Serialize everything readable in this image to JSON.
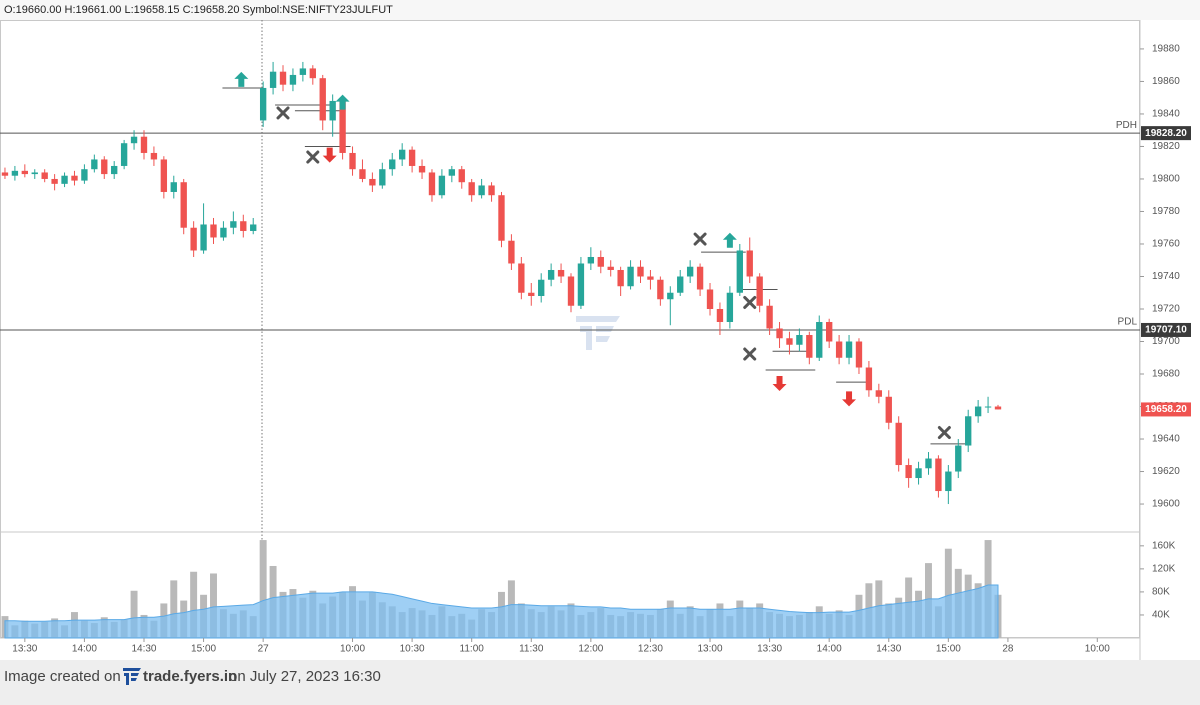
{
  "chart_data": {
    "type": "candlestick",
    "header": "O:19660.00 H:19661.00 L:19658.15 C:19658.20 Symbol:NSE:NIFTY23JULFUT",
    "footer": {
      "prefix": "Image created on",
      "site": "trade.fyers.in",
      "suffix": "on July 27, 2023 16:30"
    },
    "up_color": "#26a69a",
    "down_color": "#ef5350",
    "volume_color": "#b9b9b9",
    "volume_ma_color": "#7fbff0",
    "xlim": [
      -0.5,
      114.3
    ],
    "xticks": [
      {
        "value": 2,
        "label": "13:30"
      },
      {
        "value": 8,
        "label": "14:00"
      },
      {
        "value": 14,
        "label": "14:30"
      },
      {
        "value": 20,
        "label": "15:00"
      },
      {
        "value": 26,
        "label": "27"
      },
      {
        "value": 35,
        "label": "10:00"
      },
      {
        "value": 41,
        "label": "10:30"
      },
      {
        "value": 47,
        "label": "11:00"
      },
      {
        "value": 53,
        "label": "11:30"
      },
      {
        "value": 59,
        "label": "12:00"
      },
      {
        "value": 65,
        "label": "12:30"
      },
      {
        "value": 71,
        "label": "13:00"
      },
      {
        "value": 77,
        "label": "13:30"
      },
      {
        "value": 83,
        "label": "14:00"
      },
      {
        "value": 89,
        "label": "14:30"
      },
      {
        "value": 95,
        "label": "15:00"
      },
      {
        "value": 101,
        "label": "28"
      },
      {
        "value": 110,
        "label": "10:00"
      }
    ],
    "ylim": [
      19582.8,
      19897.8
    ],
    "yticks": [
      19600,
      19620,
      19640,
      19660,
      19680,
      19700,
      19720,
      19740,
      19760,
      19780,
      19800,
      19820,
      19840,
      19860,
      19880
    ],
    "ohlc": [
      [
        19804,
        19807,
        19800,
        19802
      ],
      [
        19802,
        19808,
        19799,
        19805
      ],
      [
        19805,
        19809,
        19801,
        19803
      ],
      [
        19803,
        19806,
        19800,
        19804
      ],
      [
        19804,
        19806,
        19798,
        19800
      ],
      [
        19800,
        19803,
        19793,
        19797
      ],
      [
        19797,
        19804,
        19795,
        19802
      ],
      [
        19802,
        19805,
        19796,
        19799
      ],
      [
        19799,
        19809,
        19797,
        19806
      ],
      [
        19806,
        19815,
        19804,
        19812
      ],
      [
        19812,
        19814,
        19800,
        19803
      ],
      [
        19803,
        19811,
        19800,
        19808
      ],
      [
        19808,
        19824,
        19806,
        19822
      ],
      [
        19822,
        19830,
        19818,
        19826
      ],
      [
        19826,
        19830,
        19812,
        19816
      ],
      [
        19816,
        19820,
        19808,
        19812
      ],
      [
        19812,
        19814,
        19788,
        19792
      ],
      [
        19792,
        19802,
        19788,
        19798
      ],
      [
        19798,
        19800,
        19766,
        19770
      ],
      [
        19770,
        19774,
        19752,
        19756
      ],
      [
        19756,
        19785,
        19754,
        19772
      ],
      [
        19772,
        19776,
        19760,
        19764
      ],
      [
        19764,
        19774,
        19762,
        19770
      ],
      [
        19770,
        19780,
        19766,
        19774
      ],
      [
        19774,
        19778,
        19764,
        19768
      ],
      [
        19768,
        19776,
        19766,
        19772
      ],
      [
        19836,
        19860,
        19832,
        19856
      ],
      [
        19856,
        19872,
        19852,
        19866
      ],
      [
        19866,
        19870,
        19854,
        19858
      ],
      [
        19858,
        19868,
        19854,
        19864
      ],
      [
        19864,
        19872,
        19860,
        19868
      ],
      [
        19868,
        19870,
        19858,
        19862
      ],
      [
        19862,
        19864,
        19830,
        19836
      ],
      [
        19836,
        19852,
        19826,
        19848
      ],
      [
        19848,
        19850,
        19812,
        19816
      ],
      [
        19816,
        19820,
        19802,
        19806
      ],
      [
        19806,
        19812,
        19798,
        19800
      ],
      [
        19800,
        19804,
        19792,
        19796
      ],
      [
        19796,
        19810,
        19794,
        19806
      ],
      [
        19806,
        19816,
        19802,
        19812
      ],
      [
        19812,
        19822,
        19808,
        19818
      ],
      [
        19818,
        19820,
        19804,
        19808
      ],
      [
        19808,
        19812,
        19800,
        19804
      ],
      [
        19804,
        19806,
        19786,
        19790
      ],
      [
        19790,
        19806,
        19788,
        19802
      ],
      [
        19802,
        19808,
        19798,
        19806
      ],
      [
        19806,
        19808,
        19794,
        19798
      ],
      [
        19798,
        19800,
        19786,
        19790
      ],
      [
        19790,
        19800,
        19788,
        19796
      ],
      [
        19796,
        19798,
        19786,
        19790
      ],
      [
        19790,
        19792,
        19758,
        19762
      ],
      [
        19762,
        19766,
        19744,
        19748
      ],
      [
        19748,
        19752,
        19726,
        19730
      ],
      [
        19730,
        19736,
        19722,
        19728
      ],
      [
        19728,
        19742,
        19724,
        19738
      ],
      [
        19738,
        19748,
        19734,
        19744
      ],
      [
        19744,
        19748,
        19736,
        19740
      ],
      [
        19740,
        19742,
        19718,
        19722
      ],
      [
        19722,
        19752,
        19720,
        19748
      ],
      [
        19748,
        19758,
        19744,
        19752
      ],
      [
        19752,
        19756,
        19742,
        19746
      ],
      [
        19746,
        19750,
        19740,
        19744
      ],
      [
        19744,
        19746,
        19728,
        19734
      ],
      [
        19734,
        19750,
        19732,
        19746
      ],
      [
        19746,
        19750,
        19736,
        19740
      ],
      [
        19740,
        19744,
        19732,
        19738
      ],
      [
        19738,
        19740,
        19722,
        19726
      ],
      [
        19726,
        19734,
        19710,
        19730
      ],
      [
        19730,
        19744,
        19728,
        19740
      ],
      [
        19740,
        19750,
        19736,
        19746
      ],
      [
        19746,
        19748,
        19728,
        19732
      ],
      [
        19732,
        19736,
        19716,
        19720
      ],
      [
        19720,
        19724,
        19704,
        19712
      ],
      [
        19712,
        19734,
        19708,
        19730
      ],
      [
        19730,
        19760,
        19728,
        19756
      ],
      [
        19756,
        19764,
        19736,
        19740
      ],
      [
        19740,
        19742,
        19718,
        19722
      ],
      [
        19722,
        19726,
        19704,
        19708
      ],
      [
        19708,
        19712,
        19696,
        19702
      ],
      [
        19702,
        19706,
        19692,
        19698
      ],
      [
        19698,
        19708,
        19694,
        19704
      ],
      [
        19704,
        19706,
        19686,
        19690
      ],
      [
        19690,
        19716,
        19688,
        19712
      ],
      [
        19712,
        19714,
        19696,
        19700
      ],
      [
        19700,
        19704,
        19686,
        19690
      ],
      [
        19690,
        19704,
        19686,
        19700
      ],
      [
        19700,
        19702,
        19680,
        19684
      ],
      [
        19684,
        19688,
        19666,
        19670
      ],
      [
        19670,
        19674,
        19662,
        19666
      ],
      [
        19666,
        19670,
        19646,
        19650
      ],
      [
        19650,
        19654,
        19620,
        19624
      ],
      [
        19624,
        19628,
        19610,
        19616
      ],
      [
        19616,
        19626,
        19612,
        19622
      ],
      [
        19622,
        19632,
        19618,
        19628
      ],
      [
        19628,
        19630,
        19604,
        19608
      ],
      [
        19608,
        19624,
        19600,
        19620
      ],
      [
        19620,
        19640,
        19616,
        19636
      ],
      [
        19636,
        19658,
        19632,
        19654
      ],
      [
        19654,
        19664,
        19650,
        19660
      ],
      [
        19660,
        19666,
        19656,
        19660
      ],
      [
        19660,
        19661,
        19658.15,
        19658.2
      ]
    ],
    "levels": [
      {
        "name": "PDH",
        "value": 19828.2,
        "label": "19828.20",
        "color": "#3a3a3a"
      },
      {
        "name": "PDL",
        "value": 19707.1,
        "label": "19707.10",
        "color": "#3a3a3a"
      }
    ],
    "last_price": {
      "value": 19658.2,
      "label": "19658.20",
      "color": "#ef5350"
    },
    "buy_arrows": [
      {
        "x": 23.8,
        "y": 19861
      },
      {
        "x": 34,
        "y": 19847
      },
      {
        "x": 73,
        "y": 19762
      }
    ],
    "sell_arrows": [
      {
        "x": 32.7,
        "y": 19815
      },
      {
        "x": 78,
        "y": 19674.5
      },
      {
        "x": 85,
        "y": 19665
      }
    ],
    "exits": [
      {
        "x": 28,
        "y": 19840.6
      },
      {
        "x": 31,
        "y": 19813.5
      },
      {
        "x": 70,
        "y": 19763
      },
      {
        "x": 75,
        "y": 19724
      },
      {
        "x": 75,
        "y": 19692.3
      },
      {
        "x": 94.6,
        "y": 19644
      }
    ],
    "entry_lines": [
      {
        "x1": 21.9,
        "x2": 26,
        "y": 19856
      },
      {
        "x1": 27.2,
        "x2": 33,
        "y": 19845.5
      },
      {
        "x1": 29.2,
        "x2": 34.3,
        "y": 19842
      },
      {
        "x1": 30.2,
        "x2": 34.8,
        "y": 19820
      },
      {
        "x1": 70.1,
        "x2": 74.6,
        "y": 19755
      },
      {
        "x1": 74.1,
        "x2": 77.8,
        "y": 19732
      },
      {
        "x1": 76.6,
        "x2": 81.6,
        "y": 19682.5
      },
      {
        "x1": 77.3,
        "x2": 80.9,
        "y": 19694
      },
      {
        "x1": 83.7,
        "x2": 87.1,
        "y": 19675
      },
      {
        "x1": 93.2,
        "x2": 96.7,
        "y": 19637
      }
    ],
    "volume_ylim": [
      0,
      184000
    ],
    "volume_yticks": [
      {
        "value": 40000,
        "label": "40K"
      },
      {
        "value": 80000,
        "label": "80K"
      },
      {
        "value": 120000,
        "label": "120K"
      },
      {
        "value": 160000,
        "label": "160K"
      }
    ],
    "volume": [
      38000,
      22000,
      30000,
      25000,
      28000,
      34000,
      22000,
      45000,
      30000,
      26000,
      36000,
      28000,
      32000,
      82000,
      40000,
      30000,
      60000,
      100000,
      65000,
      115000,
      75000,
      112000,
      50000,
      42000,
      48000,
      38000,
      170000,
      125000,
      80000,
      85000,
      70000,
      82000,
      60000,
      72000,
      80000,
      90000,
      65000,
      80000,
      62000,
      55000,
      45000,
      52000,
      48000,
      40000,
      55000,
      38000,
      42000,
      32000,
      50000,
      45000,
      80000,
      100000,
      60000,
      50000,
      45000,
      55000,
      48000,
      60000,
      40000,
      45000,
      52000,
      40000,
      38000,
      45000,
      42000,
      40000,
      50000,
      65000,
      42000,
      55000,
      38000,
      50000,
      60000,
      38000,
      65000,
      52000,
      60000,
      45000,
      42000,
      38000,
      40000,
      45000,
      55000,
      42000,
      48000,
      40000,
      75000,
      95000,
      100000,
      60000,
      70000,
      105000,
      82000,
      130000,
      55000,
      155000,
      120000,
      110000,
      95000,
      170000,
      75000
    ],
    "volume_ma": [
      30000,
      30000,
      29000,
      29000,
      29000,
      30000,
      30000,
      31000,
      31000,
      31000,
      32000,
      32000,
      32000,
      35000,
      36000,
      36000,
      38000,
      42000,
      44000,
      48000,
      50000,
      54000,
      55000,
      56000,
      57000,
      58000,
      65000,
      70000,
      72000,
      74000,
      76000,
      78000,
      78000,
      78000,
      80000,
      80000,
      80000,
      80000,
      78000,
      76000,
      72000,
      68000,
      64000,
      60000,
      58000,
      56000,
      54000,
      52000,
      52000,
      52000,
      54000,
      58000,
      58000,
      57000,
      56000,
      56000,
      56000,
      56000,
      55000,
      54000,
      54000,
      52000,
      52000,
      50000,
      50000,
      50000,
      50000,
      52000,
      52000,
      52000,
      50000,
      50000,
      50000,
      50000,
      52000,
      52000,
      52000,
      50000,
      48000,
      46000,
      45000,
      44000,
      44000,
      45000,
      45000,
      45000,
      48000,
      52000,
      56000,
      58000,
      60000,
      62000,
      64000,
      68000,
      68000,
      74000,
      78000,
      82000,
      86000,
      92000,
      92000
    ]
  }
}
